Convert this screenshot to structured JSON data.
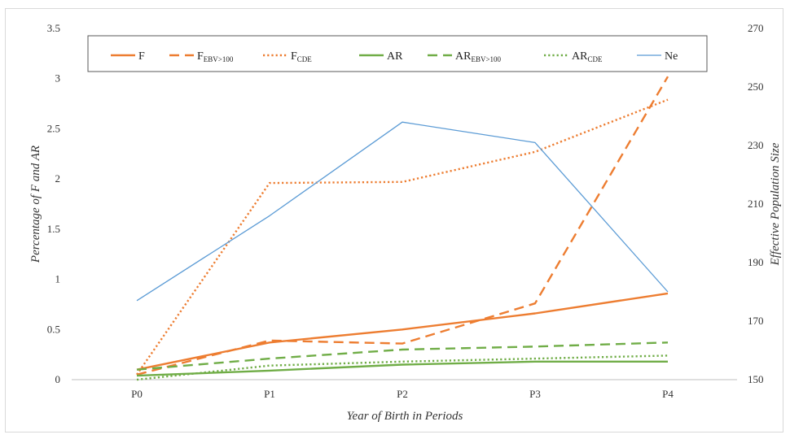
{
  "chart_data": {
    "type": "line",
    "categories": [
      "P0",
      "P1",
      "P2",
      "P3",
      "P4"
    ],
    "xlabel": "Year of Birth in Periods",
    "ylabel_left": "Percentage of F and AR",
    "ylabel_right": "Effective Population Size",
    "ylim_left": [
      0,
      3.5
    ],
    "yticks_left": [
      "0",
      "0.5",
      "1",
      "1.5",
      "2",
      "2.5",
      "3",
      "3.5"
    ],
    "ylim_right": [
      150,
      270
    ],
    "yticks_right": [
      "150",
      "170",
      "190",
      "210",
      "230",
      "250",
      "270"
    ],
    "grid": false,
    "legend_position": "top",
    "series": [
      {
        "name": "F",
        "sub": "",
        "axis": "left",
        "color": "#ed7d31",
        "style": "solid",
        "values": [
          0.1,
          0.37,
          0.5,
          0.66,
          0.86
        ]
      },
      {
        "name": "F",
        "sub": "EBV>100",
        "axis": "left",
        "color": "#ed7d31",
        "style": "dashed",
        "values": [
          0.05,
          0.39,
          0.36,
          0.76,
          3.02
        ]
      },
      {
        "name": "F",
        "sub": "CDE",
        "axis": "left",
        "color": "#ed7d31",
        "style": "dotted",
        "values": [
          0.05,
          1.96,
          1.97,
          2.27,
          2.79
        ]
      },
      {
        "name": "AR",
        "sub": "",
        "axis": "left",
        "color": "#70ad47",
        "style": "solid",
        "values": [
          0.04,
          0.09,
          0.15,
          0.18,
          0.18
        ]
      },
      {
        "name": "AR",
        "sub": "EBV>100",
        "axis": "left",
        "color": "#70ad47",
        "style": "dashed",
        "values": [
          0.1,
          0.21,
          0.3,
          0.33,
          0.37
        ]
      },
      {
        "name": "AR",
        "sub": "CDE",
        "axis": "left",
        "color": "#70ad47",
        "style": "dotted",
        "values": [
          0.0,
          0.14,
          0.18,
          0.21,
          0.24
        ]
      },
      {
        "name": "Ne",
        "sub": "",
        "axis": "right",
        "color": "#5b9bd5",
        "style": "solid",
        "values": [
          177,
          206,
          238,
          231,
          180
        ]
      }
    ]
  }
}
